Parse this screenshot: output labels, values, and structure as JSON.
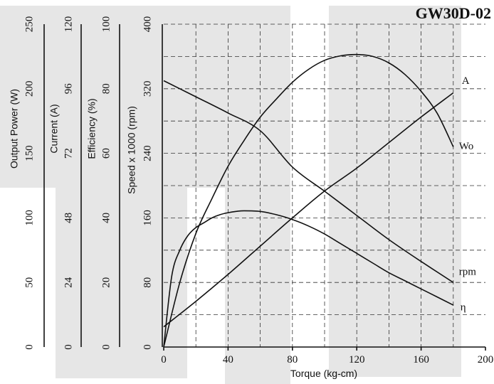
{
  "chart_data": {
    "type": "line",
    "title": "GW30D-02",
    "xlabel": "Torque (kg-cm)",
    "xlim": [
      0,
      200
    ],
    "x_ticks": [
      0,
      40,
      80,
      120,
      160,
      200
    ],
    "grid": true,
    "y_axes": [
      {
        "label": "Output Power (W)",
        "range": [
          0,
          250
        ],
        "ticks": [
          0,
          50,
          100,
          150,
          200,
          250
        ]
      },
      {
        "label": "Current (A)",
        "range": [
          0,
          120
        ],
        "ticks": [
          0,
          24,
          48,
          72,
          96,
          120
        ]
      },
      {
        "label": "Efficiency (%)",
        "range": [
          0,
          100
        ],
        "ticks": [
          0,
          20,
          40,
          60,
          80,
          100
        ]
      },
      {
        "label": "Speed x 1000 (rpm)",
        "range": [
          0,
          400
        ],
        "ticks": [
          0,
          80,
          160,
          240,
          320,
          400
        ]
      }
    ],
    "series": [
      {
        "name": "A",
        "axis": "Current (A)",
        "x": [
          0,
          20,
          40,
          60,
          80,
          100,
          120,
          140,
          160,
          180
        ],
        "y": [
          7.5,
          17,
          27,
          37.5,
          48,
          58,
          66.5,
          76,
          85.5,
          94.5
        ]
      },
      {
        "name": "Wo",
        "axis": "Output Power (W)",
        "x": [
          0,
          10,
          20,
          30,
          40,
          50,
          60,
          70,
          80,
          90,
          100,
          110,
          120,
          130,
          140,
          150,
          160,
          170,
          180
        ],
        "y": [
          0,
          50,
          88,
          115,
          140,
          160,
          178,
          192,
          205,
          215,
          222,
          225.5,
          226.5,
          225,
          220,
          211,
          198,
          181,
          155
        ]
      },
      {
        "name": "rpm",
        "axis": "Speed x 1000 (rpm)",
        "x": [
          0,
          20,
          40,
          60,
          80,
          100,
          120,
          140,
          160,
          180
        ],
        "y": [
          330,
          310,
          290,
          268,
          223,
          193,
          163,
          133,
          106,
          80
        ]
      },
      {
        "name": "η",
        "axis": "Efficiency (%)",
        "x": [
          0,
          5,
          10,
          15,
          20,
          25,
          30,
          35,
          40,
          45,
          50,
          60,
          70,
          80,
          90,
          100,
          110,
          120,
          130,
          140,
          150,
          160,
          170,
          180
        ],
        "y": [
          0,
          22,
          30,
          34.5,
          37,
          38.5,
          40,
          41,
          41.6,
          42,
          42.2,
          42,
          41,
          39.5,
          37.5,
          35,
          32,
          29,
          26,
          23,
          20.5,
          18,
          15.5,
          13
        ]
      }
    ],
    "series_label_values": [
      {
        "name": "A",
        "x": 180,
        "y_axis": "Current (A)",
        "y": 94.5
      },
      {
        "name": "Wo",
        "x": 180,
        "y_axis": "Output Power (W)",
        "y": 155
      },
      {
        "name": "rpm",
        "x": 180,
        "y_axis": "Speed x 1000 (rpm)",
        "y": 80
      },
      {
        "name": "η",
        "x": 180,
        "y_axis": "Efficiency (%)",
        "y": 13
      }
    ]
  }
}
